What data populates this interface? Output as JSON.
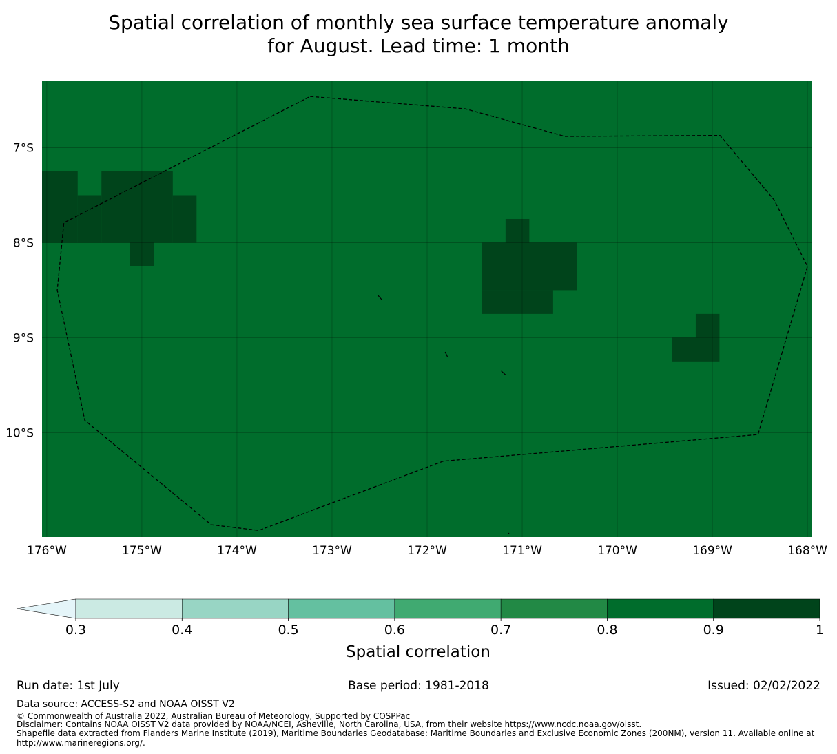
{
  "title": {
    "line1": "Spatial correlation of monthly sea surface temperature anomaly",
    "line2": "for August. Lead time: 1 month"
  },
  "map": {
    "lon_range": [
      -176.05,
      -167.95
    ],
    "lat_range": [
      -11.1,
      -6.3
    ],
    "background_value": 0.85,
    "x_ticks": [
      {
        "value": -176,
        "label": "176°W"
      },
      {
        "value": -175,
        "label": "175°W"
      },
      {
        "value": -174,
        "label": "174°W"
      },
      {
        "value": -173,
        "label": "173°W"
      },
      {
        "value": -172,
        "label": "172°W"
      },
      {
        "value": -171,
        "label": "171°W"
      },
      {
        "value": -170,
        "label": "170°W"
      },
      {
        "value": -169,
        "label": "169°W"
      },
      {
        "value": -168,
        "label": "168°W"
      }
    ],
    "y_ticks": [
      {
        "value": -7,
        "label": "7°S"
      },
      {
        "value": -8,
        "label": "8°S"
      },
      {
        "value": -9,
        "label": "9°S"
      },
      {
        "value": -10,
        "label": "10°S"
      }
    ],
    "high_cells": [
      {
        "lon0": -176.05,
        "lon1": -175.675,
        "lat0": -8.0,
        "lat1": -7.25,
        "value": 0.95
      },
      {
        "lon0": -175.675,
        "lon1": -175.425,
        "lat0": -8.0,
        "lat1": -7.5,
        "value": 0.95
      },
      {
        "lon0": -175.425,
        "lon1": -174.675,
        "lat0": -8.0,
        "lat1": -7.25,
        "value": 0.95
      },
      {
        "lon0": -174.675,
        "lon1": -174.425,
        "lat0": -8.0,
        "lat1": -7.5,
        "value": 0.95
      },
      {
        "lon0": -175.125,
        "lon1": -174.875,
        "lat0": -8.25,
        "lat1": -8.0,
        "value": 0.95
      },
      {
        "lon0": -171.175,
        "lon1": -170.925,
        "lat0": -8.0,
        "lat1": -7.75,
        "value": 0.95
      },
      {
        "lon0": -171.425,
        "lon1": -170.425,
        "lat0": -8.5,
        "lat1": -8.0,
        "value": 0.95
      },
      {
        "lon0": -171.425,
        "lon1": -170.675,
        "lat0": -8.75,
        "lat1": -8.5,
        "value": 0.95
      },
      {
        "lon0": -169.175,
        "lon1": -168.925,
        "lat0": -9.0,
        "lat1": -8.75,
        "value": 0.95
      },
      {
        "lon0": -169.425,
        "lon1": -168.925,
        "lat0": -9.25,
        "lat1": -9.0,
        "value": 0.95
      }
    ],
    "eez_boundary": [
      [
        -173.23,
        -6.46
      ],
      [
        -171.6,
        -6.59
      ],
      [
        -170.55,
        -6.88
      ],
      [
        -168.92,
        -6.87
      ],
      [
        -168.35,
        -7.55
      ],
      [
        -168.0,
        -8.25
      ],
      [
        -168.52,
        -10.02
      ],
      [
        -171.83,
        -10.3
      ],
      [
        -173.77,
        -11.03
      ],
      [
        -174.27,
        -10.97
      ],
      [
        -175.6,
        -9.87
      ],
      [
        -175.89,
        -8.5
      ],
      [
        -175.82,
        -7.79
      ],
      [
        -173.23,
        -6.46
      ]
    ],
    "islands": [
      [
        [
          -172.52,
          -8.55
        ],
        [
          -172.48,
          -8.6
        ]
      ],
      [
        [
          -171.81,
          -9.15
        ],
        [
          -171.79,
          -9.2
        ]
      ],
      [
        [
          -171.22,
          -9.35
        ],
        [
          -171.18,
          -9.39
        ]
      ],
      [
        [
          -171.15,
          -11.06
        ],
        [
          -171.14,
          -11.06
        ]
      ]
    ]
  },
  "colorbar": {
    "boundaries": [
      0.3,
      0.4,
      0.5,
      0.6,
      0.7,
      0.8,
      0.9,
      1.0
    ],
    "colors": [
      "#cbeae3",
      "#98d5c4",
      "#64c0a0",
      "#40aa71",
      "#228945",
      "#006d2c",
      "#00441b"
    ],
    "extend_color": "#e5f5f9",
    "tick_labels": [
      "0.3",
      "0.4",
      "0.5",
      "0.6",
      "0.7",
      "0.8",
      "0.9",
      "1"
    ],
    "label": "Spatial correlation"
  },
  "footer": {
    "run_date": "Run date: 1st July",
    "base_period": "Base period: 1981-2018",
    "issued": "Issued: 02/02/2022",
    "data_source": "Data source: ACCESS-S2 and NOAA OISST V2",
    "copyright": "© Commonwealth of Australia 2022, Australian Bureau of Meteorology, Supported by COSPPac",
    "disclaimer": "Disclaimer: Contains NOAA OISST V2 data provided by NOAA/NCEI, Asheville, North Carolina, USA, from their website https://www.ncdc.noaa.gov/oisst.",
    "shapefile_1": "Shapefile data extracted from Flanders Marine Institute (2019), Maritime Boundaries Geodatabase: Maritime Boundaries and Exclusive Economic Zones (200NM), version 11. Available online at",
    "shapefile_2": "http://www.marineregions.org/."
  }
}
